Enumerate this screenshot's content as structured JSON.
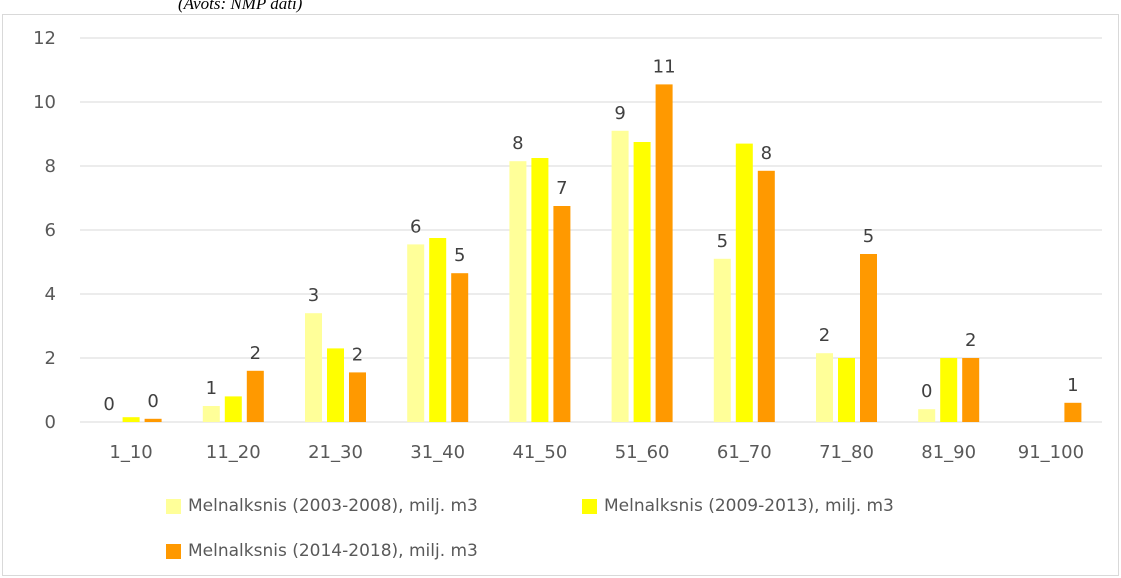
{
  "caption": "(Avots: NMP dati)",
  "chart_data": {
    "type": "bar",
    "categories": [
      "1_10",
      "11_20",
      "21_30",
      "31_40",
      "41_50",
      "51_60",
      "61_70",
      "71_80",
      "81_90",
      "91_100"
    ],
    "series": [
      {
        "name": "Melnalksnis (2003-2008), milj. m3",
        "color": "#ffff99",
        "values": [
          0,
          0.5,
          3.4,
          5.55,
          8.15,
          9.1,
          5.1,
          2.15,
          0.4,
          0
        ],
        "labels": [
          "0",
          "1",
          "3",
          "6",
          "8",
          "9",
          "5",
          "2",
          "0",
          ""
        ]
      },
      {
        "name": "Melnalksnis (2009-2013), milj. m3",
        "color": "#ffff00",
        "values": [
          0.15,
          0.8,
          2.3,
          5.75,
          8.25,
          8.75,
          8.7,
          2.0,
          2.0,
          0
        ],
        "labels": [
          "",
          "",
          "",
          "",
          "",
          "",
          "",
          "",
          "",
          ""
        ]
      },
      {
        "name": "Melnalksnis (2014-2018), milj. m3",
        "color": "#ff9900",
        "values": [
          0.1,
          1.6,
          1.55,
          4.65,
          6.75,
          10.55,
          7.85,
          5.25,
          2.0,
          0.6
        ],
        "labels": [
          "0",
          "2",
          "2",
          "5",
          "7",
          "11",
          "8",
          "5",
          "2",
          "1"
        ]
      }
    ],
    "ylim": [
      0,
      12
    ],
    "yticks": [
      "0",
      "2",
      "4",
      "6",
      "8",
      "10",
      "12"
    ],
    "grid": true,
    "legend_placement": "bottom"
  }
}
